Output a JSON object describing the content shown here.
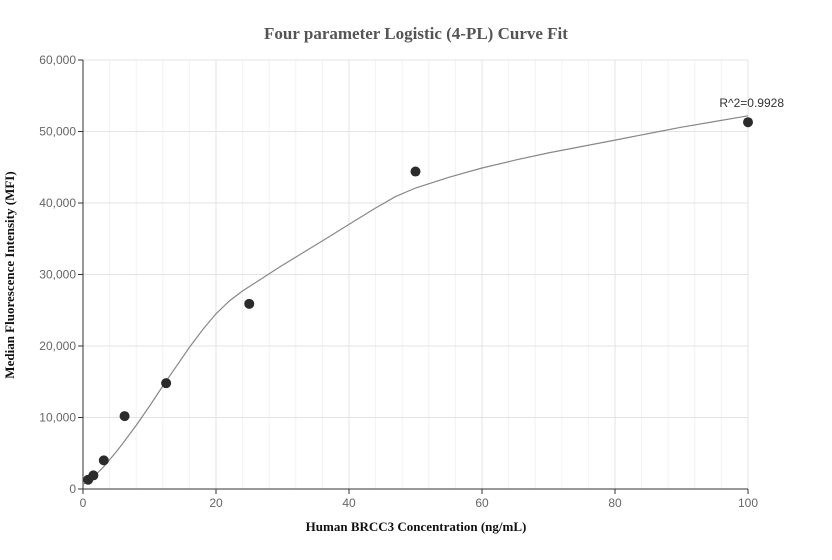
{
  "chart_data": {
    "type": "scatter",
    "title": "Four parameter Logistic (4-PL) Curve Fit",
    "xlabel": "Human BRCC3 Concentration (ng/mL)",
    "ylabel": "Median Fluorescence Intensity (MFI)",
    "xlim": [
      0,
      100
    ],
    "ylim": [
      0,
      60000
    ],
    "x_ticks": [
      0,
      20,
      40,
      60,
      80,
      100
    ],
    "y_ticks": [
      0,
      10000,
      20000,
      30000,
      40000,
      50000,
      60000
    ],
    "x_tick_labels": [
      "0",
      "20",
      "40",
      "60",
      "80",
      "100"
    ],
    "y_tick_labels": [
      "0",
      "10,000",
      "20,000",
      "30,000",
      "40,000",
      "50,000",
      "60,000"
    ],
    "x_minor_step": 4,
    "grid": true,
    "points": {
      "x": [
        0.78,
        1.56,
        3.13,
        6.25,
        12.5,
        25,
        50,
        100
      ],
      "y": [
        1300,
        1900,
        4000,
        10200,
        14800,
        25900,
        44400,
        51300
      ],
      "color": "#2b2b2b"
    },
    "fit_curve": {
      "x": [
        0,
        1,
        2,
        3,
        4,
        5,
        6,
        8,
        10,
        12,
        14,
        16,
        18,
        20,
        22,
        24,
        26,
        28,
        30,
        33,
        36,
        40,
        44,
        47,
        50,
        55,
        60,
        65,
        70,
        75,
        80,
        85,
        90,
        95,
        100
      ],
      "y": [
        600,
        1300,
        2100,
        3000,
        4100,
        5200,
        6400,
        8900,
        11600,
        14400,
        17100,
        19800,
        22300,
        24500,
        26300,
        27700,
        28900,
        30100,
        31300,
        33000,
        34700,
        37000,
        39300,
        40900,
        42100,
        43600,
        44900,
        46000,
        47000,
        47900,
        48800,
        49700,
        50600,
        51400,
        52200
      ],
      "color": "#888888"
    },
    "annotation": "R^2=0.9928"
  }
}
